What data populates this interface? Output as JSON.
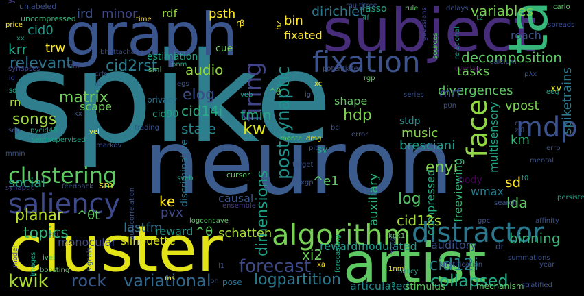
{
  "words": [
    {
      "text": "spike",
      "color": "#2e7e8e"
    },
    {
      "text": "neuron",
      "color": "#3b5b8c"
    },
    {
      "text": "subject",
      "color": "#472c7a"
    },
    {
      "text": "graph",
      "color": "#3a548c"
    },
    {
      "text": "cluster",
      "color": "#e2e418"
    },
    {
      "text": "artist",
      "color": "#5ec962"
    },
    {
      "text": "tag",
      "color": "#35b779"
    },
    {
      "text": "algorithm",
      "color": "#75d054"
    },
    {
      "text": "saliency",
      "color": "#3e4989"
    },
    {
      "text": "distractor",
      "color": "#2a788e"
    },
    {
      "text": "fixation",
      "color": "#3b528b"
    },
    {
      "text": "face",
      "color": "#90d743"
    },
    {
      "text": "mdp",
      "color": "#3b528b"
    },
    {
      "text": "firing",
      "color": "#414487"
    },
    {
      "text": "clustering",
      "color": "#5ec962"
    },
    {
      "text": "postsynaptic",
      "color": "#21918c"
    },
    {
      "text": "dimensions",
      "color": "#1fa187"
    },
    {
      "text": "forecast",
      "color": "#3e4989"
    },
    {
      "text": "variational",
      "color": "#31688e"
    },
    {
      "text": "cid12i",
      "color": "#26828e"
    },
    {
      "text": "collapsed",
      "color": "#22a884"
    },
    {
      "text": "logpartition",
      "color": "#2a788e"
    },
    {
      "text": "rock",
      "color": "#38598c"
    },
    {
      "text": "kwik",
      "color": "#addc30"
    },
    {
      "text": "decomposition",
      "color": "#5ec962"
    },
    {
      "text": "variables",
      "color": "#7ad151"
    },
    {
      "text": "dirichlet",
      "color": "#2a788e"
    },
    {
      "text": "social",
      "color": "#1f9e89"
    },
    {
      "text": "topics",
      "color": "#35b779"
    },
    {
      "text": "planar",
      "color": "#b5de2b"
    },
    {
      "text": "matrix",
      "color": "#6ece58"
    },
    {
      "text": "songs",
      "color": "#a0da39"
    },
    {
      "text": "relevant",
      "color": "#2c728e"
    },
    {
      "text": "audio",
      "color": "#90d743"
    },
    {
      "text": "cid2rst",
      "color": "#287c8e"
    },
    {
      "text": "cid14i",
      "color": "#25ab82"
    },
    {
      "text": "state",
      "color": "#25838e"
    },
    {
      "text": "tmin",
      "color": "#22a884"
    },
    {
      "text": "kw",
      "color": "#dde318"
    },
    {
      "text": "elog",
      "color": "#3e4c8a"
    },
    {
      "text": "hdp",
      "color": "#7ad151"
    },
    {
      "text": "shape",
      "color": "#5ec962"
    },
    {
      "text": "music",
      "color": "#86d549"
    },
    {
      "text": "bresciani",
      "color": "#1f9a8a"
    },
    {
      "text": "stdp",
      "color": "#21918c"
    },
    {
      "text": "multisensory",
      "color": "#20a486"
    },
    {
      "text": "spiketrains",
      "color": "#2a788e"
    },
    {
      "text": "vpost",
      "color": "#7ad151"
    },
    {
      "text": "km",
      "color": "#35b779"
    },
    {
      "text": "sd",
      "color": "#fde725"
    },
    {
      "text": "lda",
      "color": "#5ec962"
    },
    {
      "text": "log",
      "color": "#52c569"
    },
    {
      "text": "enyi",
      "color": "#7fd34e"
    },
    {
      "text": "auxiliary",
      "color": "#2db27d"
    },
    {
      "text": "compressed",
      "color": "#25ab82"
    },
    {
      "text": "freeviewing",
      "color": "#37b878"
    },
    {
      "text": "binning",
      "color": "#35b779"
    },
    {
      "text": "cid12s",
      "color": "#a5db36"
    },
    {
      "text": "wmax",
      "color": "#287c8e"
    },
    {
      "text": "body",
      "color": "#440154"
    },
    {
      "text": "causal",
      "color": "#3b528b"
    },
    {
      "text": "ke",
      "color": "#fde725"
    },
    {
      "text": "pvx",
      "color": "#3e4989"
    },
    {
      "text": "lastfm",
      "color": "#2c718e"
    },
    {
      "text": "schatten",
      "color": "#a8db34"
    },
    {
      "text": "reward",
      "color": "#1f968b"
    },
    {
      "text": "rewardmodulated",
      "color": "#1e9b8a"
    },
    {
      "text": "xi2",
      "color": "#6ccd5a"
    },
    {
      "text": "auditory",
      "color": "#3b528b"
    },
    {
      "text": "articulated",
      "color": "#23898e"
    },
    {
      "text": "stimulus",
      "color": "#5ec962"
    },
    {
      "text": "silhouette",
      "color": "#dde318"
    },
    {
      "text": "monocular",
      "color": "#3e4989"
    },
    {
      "text": "sm",
      "color": "#fde725"
    },
    {
      "text": "krr",
      "color": "#20a486"
    },
    {
      "text": "trw",
      "color": "#fde725"
    },
    {
      "text": "cid0",
      "color": "#1f9a8a"
    },
    {
      "text": "ird",
      "color": "#3b528b"
    },
    {
      "text": "minor",
      "color": "#404688"
    },
    {
      "text": "rdf",
      "color": "#9dd93b"
    },
    {
      "text": "psth",
      "color": "#fde725"
    },
    {
      "text": "cue",
      "color": "#6ece58"
    },
    {
      "text": "bin",
      "color": "#fde725"
    },
    {
      "text": "lasso",
      "color": "#20a486"
    },
    {
      "text": "fixated",
      "color": "#fde725"
    },
    {
      "text": "roach",
      "color": "#3b528b"
    },
    {
      "text": "tasks",
      "color": "#6ece58"
    },
    {
      "text": "divergences",
      "color": "#5ec962"
    },
    {
      "text": "mrf",
      "color": "#3e4989"
    },
    {
      "text": "xv",
      "color": "#dde318"
    },
    {
      "text": "estimation",
      "color": "#20a486"
    },
    {
      "text": "cid90",
      "color": "#20a486"
    },
    {
      "text": "privacy",
      "color": "#2c728e"
    },
    {
      "text": "scape",
      "color": "#6ece58"
    },
    {
      "text": "rn",
      "color": "#a8db34"
    },
    {
      "text": "sv",
      "color": "#25ab82"
    },
    {
      "text": "discriminative",
      "color": "#2c728e"
    },
    {
      "text": "pose",
      "color": "#2c728e"
    },
    {
      "text": "ym",
      "color": "#443983"
    },
    {
      "text": "unlabeled",
      "color": "#3b528b"
    },
    {
      "text": "uncompressed",
      "color": "#35b779"
    },
    {
      "text": "price",
      "color": "#fde725"
    },
    {
      "text": "time",
      "color": "#fde725"
    },
    {
      "text": "bhattacharyya",
      "color": "#3e4989"
    },
    {
      "text": "multitree",
      "color": "#3b528b"
    },
    {
      "text": "rule",
      "color": "#5ec962"
    },
    {
      "text": "delays",
      "color": "#3b528b"
    },
    {
      "text": "carlo",
      "color": "#5ec962"
    },
    {
      "text": "spreads",
      "color": "#3b528b"
    },
    {
      "text": "calcium",
      "color": "#3b528b"
    },
    {
      "text": "sources",
      "color": "#5ec962"
    },
    {
      "text": "relational",
      "color": "#1f9a8a"
    },
    {
      "text": "gaussians",
      "color": "#414487"
    },
    {
      "text": "potentiated",
      "color": "#3b528b"
    },
    {
      "text": "eeg",
      "color": "#20a486"
    },
    {
      "text": "rnm",
      "color": "#3e4989"
    },
    {
      "text": "crfs",
      "color": "#3b528b"
    },
    {
      "text": "synapses",
      "color": "#414487"
    },
    {
      "text": "sml",
      "color": "#5ec962"
    },
    {
      "text": "bnm",
      "color": "#20a486"
    },
    {
      "text": "egs",
      "color": "#3b528b"
    },
    {
      "text": "veb",
      "color": "#20a486"
    },
    {
      "text": "xc",
      "color": "#fde725"
    },
    {
      "text": "rgp",
      "color": "#5ec962"
    },
    {
      "text": "series",
      "color": "#3b528b"
    },
    {
      "text": "iid",
      "color": "#3e4989"
    },
    {
      "text": "isd",
      "color": "#20a486"
    },
    {
      "text": "sdp",
      "color": "#3b528b"
    },
    {
      "text": "pycid48",
      "color": "#20a486"
    },
    {
      "text": "vei",
      "color": "#fde725"
    },
    {
      "text": "trading",
      "color": "#3b528b"
    },
    {
      "text": "monte",
      "color": "#5ec962"
    },
    {
      "text": "dmg",
      "color": "#fde725"
    },
    {
      "text": "error",
      "color": "#3b528b"
    },
    {
      "text": "bci",
      "color": "#3b528b"
    },
    {
      "text": "markov",
      "color": "#3b528b"
    },
    {
      "text": "semisupervised",
      "color": "#20a486"
    },
    {
      "text": "mmin",
      "color": "#3b528b"
    },
    {
      "text": "synaptic",
      "color": "#443983"
    },
    {
      "text": "feedback",
      "color": "#3b528b"
    },
    {
      "text": "sveb",
      "color": "#20a486"
    },
    {
      "text": "cursor",
      "color": "#5ec962"
    },
    {
      "text": "target",
      "color": "#3b528b"
    },
    {
      "text": "xgp",
      "color": "#3b528b"
    },
    {
      "text": "ensemble",
      "color": "#443983"
    },
    {
      "text": "autocorrelation",
      "color": "#3b528b"
    },
    {
      "text": "logconcave",
      "color": "#5ec962"
    },
    {
      "text": "persistence",
      "color": "#20a486"
    },
    {
      "text": "search",
      "color": "#3b528b"
    },
    {
      "text": "affinity",
      "color": "#3b528b"
    },
    {
      "text": "gpc",
      "color": "#3b528b"
    },
    {
      "text": "mental",
      "color": "#3b528b"
    },
    {
      "text": "errp",
      "color": "#3b528b"
    },
    {
      "text": "model",
      "color": "#3e4989"
    },
    {
      "text": "images",
      "color": "#20a486"
    },
    {
      "text": "ivei",
      "color": "#5ec962"
    },
    {
      "text": "boosting",
      "color": "#5ec962"
    },
    {
      "text": "signals",
      "color": "#3b528b"
    },
    {
      "text": "forecasting",
      "color": "#20a486"
    },
    {
      "text": "motor",
      "color": "#3b528b"
    },
    {
      "text": "mechanism",
      "color": "#5ec962"
    },
    {
      "text": "policy",
      "color": "#20a486"
    },
    {
      "text": "stratification",
      "color": "#3b528b"
    },
    {
      "text": "summations",
      "color": "#3b528b"
    },
    {
      "text": "stratified",
      "color": "#3b528b"
    },
    {
      "text": "year",
      "color": "#3b528b"
    },
    {
      "text": "1nm",
      "color": "#fde725"
    },
    {
      "text": "ms",
      "color": "#fde725"
    },
    {
      "text": "gs",
      "color": "#fde725"
    },
    {
      "text": "xa",
      "color": "#fde725"
    },
    {
      "text": "dr",
      "color": "#3b528b"
    },
    {
      "text": "y3",
      "color": "#20a486"
    },
    {
      "text": "t2",
      "color": "#20a486"
    },
    {
      "text": "t0",
      "color": "#20a486"
    },
    {
      "text": "xx",
      "color": "#20a486"
    },
    {
      "text": "rβ",
      "color": "#fde725"
    },
    {
      "text": "hz",
      "color": "#fde725"
    },
    {
      "text": "ig",
      "color": "#3b528b"
    },
    {
      "text": "4f",
      "color": "#20a486"
    },
    {
      "text": "pλx",
      "color": "#3b528b"
    },
    {
      "text": "i0",
      "color": "#3b528b"
    },
    {
      "text": "zi0",
      "color": "#3b528b"
    },
    {
      "text": "p0n",
      "color": "#3b528b"
    },
    {
      "text": "^e1",
      "color": "#5ec962"
    },
    {
      "text": "^θt",
      "color": "#5ec962"
    },
    {
      "text": "^θ",
      "color": "#5ec962"
    },
    {
      "text": "^θ",
      "color": "#5ec962"
    },
    {
      "text": "kpk1",
      "color": "#5ec962"
    },
    {
      "text": "pn",
      "color": "#3b528b"
    },
    {
      "text": "l1",
      "color": "#3b528b"
    },
    {
      "text": "ca",
      "color": "#3b528b"
    },
    {
      "text": "kx",
      "color": "#3b528b"
    },
    {
      "text": "pit",
      "color": "#3b528b"
    },
    {
      "text": "xpi",
      "color": "#3b528b"
    },
    {
      "text": "overlap",
      "color": "#440154"
    }
  ]
}
